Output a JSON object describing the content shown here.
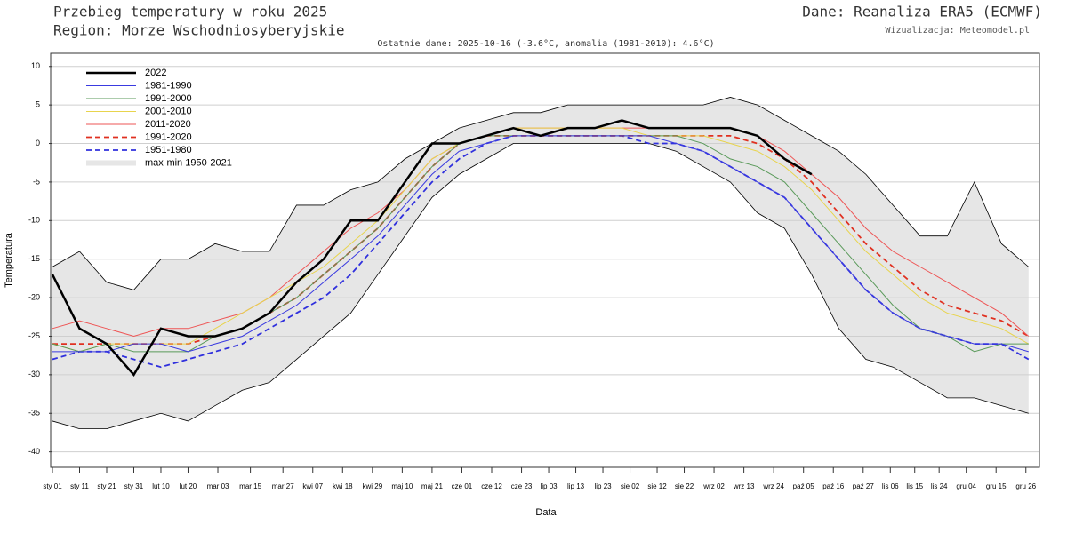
{
  "chart_data": {
    "type": "line",
    "title": "Przebieg temperatury w roku 2025",
    "subtitle": "Region: Morze Wschodniosyberyjskie",
    "source": "Dane: Reanaliza ERA5 (ECMWF)",
    "credit": "Wizualizacja: Meteomodel.pl",
    "note": "Ostatnie dane: 2025-10-16 (-3.6°C, anomalia (1981-2010): 4.6°C)",
    "xlabel": "Data",
    "ylabel": "Temperatura",
    "legend": "upper left",
    "grid": true,
    "xlim": [
      1,
      365
    ],
    "ylim": [
      -42,
      11.7
    ],
    "yticks": [
      -40,
      -35,
      -30,
      -25,
      -20,
      -15,
      -10,
      -5,
      0,
      5,
      10
    ],
    "xticks": [
      {
        "value": 1,
        "label": "sty 01"
      },
      {
        "value": 11,
        "label": "sty 11"
      },
      {
        "value": 21,
        "label": "sty 21"
      },
      {
        "value": 31,
        "label": "sty 31"
      },
      {
        "value": 41,
        "label": "lut 10"
      },
      {
        "value": 51,
        "label": "lut 20"
      },
      {
        "value": 62,
        "label": "mar 03"
      },
      {
        "value": 74,
        "label": "mar 15"
      },
      {
        "value": 86,
        "label": "mar 27"
      },
      {
        "value": 97,
        "label": "kwi 07"
      },
      {
        "value": 108,
        "label": "kwi 18"
      },
      {
        "value": 119,
        "label": "kwi 29"
      },
      {
        "value": 130,
        "label": "maj 10"
      },
      {
        "value": 141,
        "label": "maj 21"
      },
      {
        "value": 152,
        "label": "cze 01"
      },
      {
        "value": 163,
        "label": "cze 12"
      },
      {
        "value": 174,
        "label": "cze 23"
      },
      {
        "value": 184,
        "label": "lip 03"
      },
      {
        "value": 194,
        "label": "lip 13"
      },
      {
        "value": 204,
        "label": "lip 23"
      },
      {
        "value": 214,
        "label": "sie 02"
      },
      {
        "value": 224,
        "label": "sie 12"
      },
      {
        "value": 234,
        "label": "sie 22"
      },
      {
        "value": 245,
        "label": "wrz 02"
      },
      {
        "value": 256,
        "label": "wrz 13"
      },
      {
        "value": 267,
        "label": "wrz 24"
      },
      {
        "value": 278,
        "label": "paź 05"
      },
      {
        "value": 289,
        "label": "paź 16"
      },
      {
        "value": 300,
        "label": "paź 27"
      },
      {
        "value": 310,
        "label": "lis 06"
      },
      {
        "value": 319,
        "label": "lis 15"
      },
      {
        "value": 328,
        "label": "lis 24"
      },
      {
        "value": 338,
        "label": "gru 04"
      },
      {
        "value": 349,
        "label": "gru 15"
      },
      {
        "value": 360,
        "label": "gru 26"
      }
    ],
    "x": [
      1,
      11,
      21,
      31,
      41,
      51,
      61,
      71,
      81,
      91,
      101,
      111,
      121,
      131,
      141,
      151,
      161,
      171,
      181,
      191,
      201,
      211,
      221,
      231,
      241,
      251,
      261,
      271,
      281,
      291,
      301,
      311,
      321,
      331,
      341,
      351,
      361
    ],
    "band": {
      "name": "max-min 1950-2021",
      "color": "#e6e6e6",
      "upper": [
        -16,
        -14,
        -18,
        -19,
        -15,
        -15,
        -13,
        -14,
        -14,
        -8,
        -8,
        -6,
        -5,
        -2,
        0,
        2,
        3,
        4,
        4,
        5,
        5,
        5,
        5,
        5,
        5,
        6,
        5,
        3,
        1,
        -1,
        -4,
        -8,
        -12,
        -12,
        -5,
        -13,
        -16
      ],
      "lower": [
        -36,
        -37,
        -37,
        -36,
        -35,
        -36,
        -34,
        -32,
        -31,
        -28,
        -25,
        -22,
        -17,
        -12,
        -7,
        -4,
        -2,
        0,
        0,
        0,
        0,
        0,
        0,
        -1,
        -3,
        -5,
        -9,
        -11,
        -17,
        -24,
        -28,
        -29,
        -31,
        -33,
        -33,
        -34,
        -35
      ]
    },
    "series": [
      {
        "name": "2022",
        "color": "#000000",
        "style": "bold",
        "values": [
          -17,
          -24,
          -26,
          -30,
          -24,
          -25,
          -25,
          -24,
          -22,
          -18,
          -15,
          -10,
          -10,
          -5,
          0,
          0,
          1,
          2,
          1,
          2,
          2,
          3,
          2,
          2,
          2,
          2,
          1,
          -2,
          -4,
          null,
          null,
          null,
          null,
          null,
          null,
          null,
          null
        ]
      },
      {
        "name": "1981-1990",
        "color": "#3a3ae0",
        "style": "solid",
        "values": [
          -27,
          -27,
          -27,
          -26,
          -26,
          -27,
          -26,
          -25,
          -23,
          -21,
          -18,
          -15,
          -12,
          -8,
          -4,
          -1,
          0,
          1,
          1,
          1,
          1,
          1,
          1,
          0,
          -1,
          -3,
          -5,
          -7,
          -11,
          -15,
          -19,
          -22,
          -24,
          -25,
          -26,
          -26,
          -27
        ]
      },
      {
        "name": "1991-2000",
        "color": "#5a9a5a",
        "style": "solid",
        "values": [
          -26,
          -27,
          -26,
          -27,
          -27,
          -27,
          -25,
          -24,
          -22,
          -20,
          -17,
          -14,
          -11,
          -7,
          -3,
          0,
          1,
          1,
          1,
          1,
          1,
          1,
          1,
          1,
          0,
          -2,
          -3,
          -5,
          -9,
          -13,
          -17,
          -21,
          -24,
          -25,
          -27,
          -26,
          -26
        ]
      },
      {
        "name": "2001-2010",
        "color": "#e8d44d",
        "style": "solid",
        "values": [
          -26,
          -27,
          -26,
          -26,
          -26,
          -26,
          -24,
          -22,
          -20,
          -18,
          -16,
          -13,
          -10,
          -6,
          -2,
          0,
          1,
          2,
          2,
          2,
          2,
          2,
          1,
          1,
          1,
          0,
          -1,
          -3,
          -6,
          -10,
          -14,
          -17,
          -20,
          -22,
          -23,
          -24,
          -26
        ]
      },
      {
        "name": "2011-2020",
        "color": "#ee5555",
        "style": "solid",
        "values": [
          -24,
          -23,
          -24,
          -25,
          -24,
          -24,
          -23,
          -22,
          -20,
          -17,
          -14,
          -11,
          -9,
          -6,
          -2,
          0,
          1,
          2,
          2,
          2,
          2,
          2,
          2,
          2,
          2,
          2,
          1,
          -1,
          -4,
          -7,
          -11,
          -14,
          -16,
          -18,
          -20,
          -22,
          -25
        ]
      },
      {
        "name": "1991-2020",
        "color": "#e03020",
        "style": "dashed",
        "values": [
          -26,
          -26,
          -26,
          -26,
          -26,
          -26,
          -25,
          -24,
          -22,
          -20,
          -17,
          -14,
          -11,
          -7,
          -3,
          0,
          1,
          1,
          1,
          1,
          1,
          1,
          1,
          1,
          1,
          1,
          0,
          -2,
          -5,
          -9,
          -13,
          -16,
          -19,
          -21,
          -22,
          -23,
          -25
        ]
      },
      {
        "name": "1951-1980",
        "color": "#3030dd",
        "style": "dashed",
        "values": [
          -28,
          -27,
          -27,
          -28,
          -29,
          -28,
          -27,
          -26,
          -24,
          -22,
          -20,
          -17,
          -13,
          -9,
          -5,
          -2,
          0,
          1,
          1,
          1,
          1,
          1,
          0,
          0,
          -1,
          -3,
          -5,
          -7,
          -11,
          -15,
          -19,
          -22,
          -24,
          -25,
          -26,
          -26,
          -28
        ]
      }
    ]
  }
}
